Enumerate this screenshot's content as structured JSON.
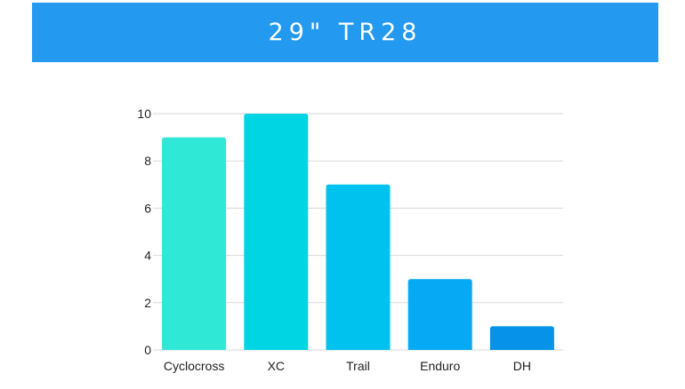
{
  "header": {
    "title": "29\" TR28",
    "background": "#2499f0"
  },
  "chart_data": {
    "type": "bar",
    "title": "29\" TR28",
    "categories": [
      "Cyclocross",
      "XC",
      "Trail",
      "Enduro",
      "DH"
    ],
    "values": [
      9,
      10,
      7,
      3,
      1
    ],
    "colors": [
      "#30e8d6",
      "#00d5e3",
      "#00c2ee",
      "#06a9f4",
      "#0592e8"
    ],
    "xlabel": "",
    "ylabel": "",
    "ylim": [
      0,
      10
    ],
    "yticks": [
      0,
      2,
      4,
      6,
      8,
      10
    ],
    "grid": true,
    "legend": "none"
  }
}
